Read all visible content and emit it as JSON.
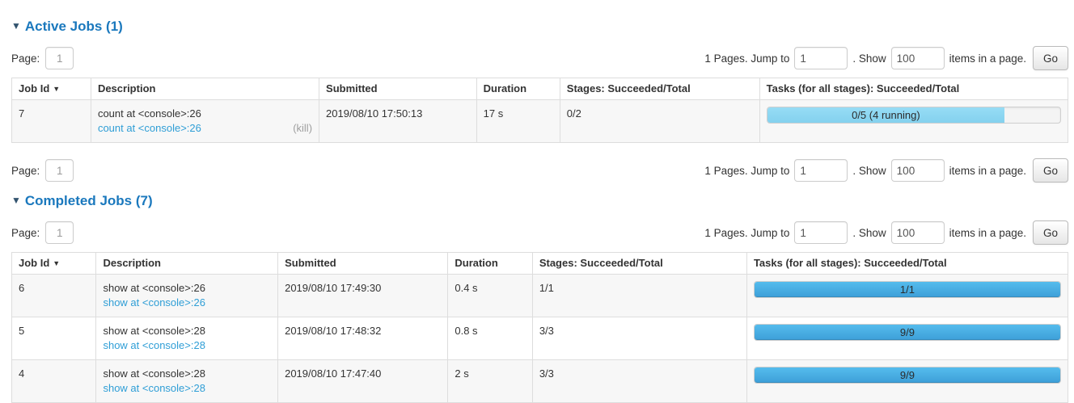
{
  "colors": {
    "title_blue": "#1a78bd",
    "arrow_color": "#32536e",
    "link_blue": "#2f9ed6",
    "bar_completed_top": "#55bced",
    "bar_completed_bottom": "#3d9fd8",
    "bar_running_top": "#97dcf5",
    "bar_running_bottom": "#84d1ee"
  },
  "pagination": {
    "page_label": "Page:",
    "page_value": "1",
    "pages_text": "1 Pages. Jump to",
    "jump_value": "1",
    "show_text": ". Show",
    "show_value": "100",
    "items_text": "items in a page.",
    "go_label": "Go"
  },
  "active_jobs": {
    "collapse_icon": "▼",
    "title": "Active Jobs (1)",
    "table": {
      "headers": {
        "job_id": "Job Id",
        "sort_icon": "▼",
        "description": "Description",
        "submitted": "Submitted",
        "duration": "Duration",
        "stages": "Stages: Succeeded/Total",
        "tasks": "Tasks (for all stages): Succeeded/Total"
      },
      "rows": [
        {
          "job_id": "7",
          "description": "count at <console>:26",
          "description_link": "count at <console>:26",
          "kill_label": "(kill)",
          "submitted": "2019/08/10 17:50:13",
          "duration": "17 s",
          "stages": "0/2",
          "tasks_progress": {
            "label": "0/5 (4 running)",
            "percent": 81,
            "kind": "running"
          }
        }
      ]
    }
  },
  "completed_jobs": {
    "collapse_icon": "▼",
    "title": "Completed Jobs (7)",
    "table": {
      "headers": {
        "job_id": "Job Id",
        "sort_icon": "▼",
        "description": "Description",
        "submitted": "Submitted",
        "duration": "Duration",
        "stages": "Stages: Succeeded/Total",
        "tasks": "Tasks (for all stages): Succeeded/Total"
      },
      "rows": [
        {
          "job_id": "6",
          "description": "show at <console>:26",
          "description_link": "show at <console>:26",
          "submitted": "2019/08/10 17:49:30",
          "duration": "0.4 s",
          "stages": "1/1",
          "tasks_progress": {
            "label": "1/1",
            "percent": 100,
            "kind": "completed"
          }
        },
        {
          "job_id": "5",
          "description": "show at <console>:28",
          "description_link": "show at <console>:28",
          "submitted": "2019/08/10 17:48:32",
          "duration": "0.8 s",
          "stages": "3/3",
          "tasks_progress": {
            "label": "9/9",
            "percent": 100,
            "kind": "completed"
          }
        },
        {
          "job_id": "4",
          "description": "show at <console>:28",
          "description_link": "show at <console>:28",
          "submitted": "2019/08/10 17:47:40",
          "duration": "2 s",
          "stages": "3/3",
          "tasks_progress": {
            "label": "9/9",
            "percent": 100,
            "kind": "completed"
          }
        }
      ]
    }
  }
}
